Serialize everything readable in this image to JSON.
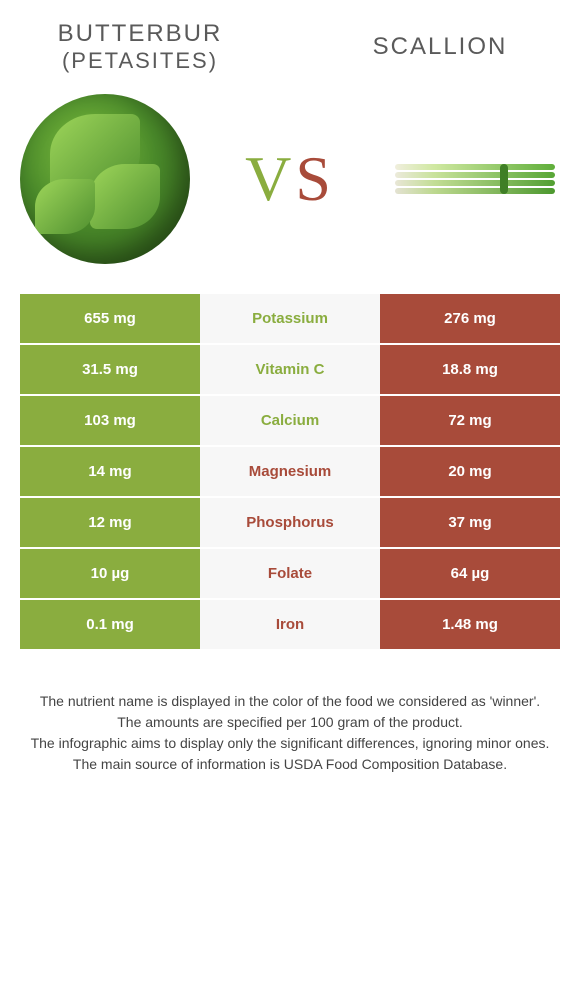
{
  "colors": {
    "left": "#8aad3f",
    "right": "#a84b3a",
    "mid_bg": "#f7f7f7"
  },
  "header": {
    "left_line1": "Butterbur",
    "left_line2": "(Petasites)",
    "right": "Scallion"
  },
  "vs": {
    "v": "V",
    "s": "S"
  },
  "rows": [
    {
      "left": "655 mg",
      "label": "Potassium",
      "right": "276 mg",
      "winner": "left"
    },
    {
      "left": "31.5 mg",
      "label": "Vitamin C",
      "right": "18.8 mg",
      "winner": "left"
    },
    {
      "left": "103 mg",
      "label": "Calcium",
      "right": "72 mg",
      "winner": "left"
    },
    {
      "left": "14 mg",
      "label": "Magnesium",
      "right": "20 mg",
      "winner": "right"
    },
    {
      "left": "12 mg",
      "label": "Phosphorus",
      "right": "37 mg",
      "winner": "right"
    },
    {
      "left": "10 µg",
      "label": "Folate",
      "right": "64 µg",
      "winner": "right"
    },
    {
      "left": "0.1 mg",
      "label": "Iron",
      "right": "1.48 mg",
      "winner": "right"
    }
  ],
  "footer": {
    "line1": "The nutrient name is displayed in the color of the food we considered as 'winner'.",
    "line2": "The amounts are specified per 100 gram of the product.",
    "line3": "The infographic aims to display only the significant differences, ignoring minor ones.",
    "line4": "The main source of information is USDA Food Composition Database."
  }
}
